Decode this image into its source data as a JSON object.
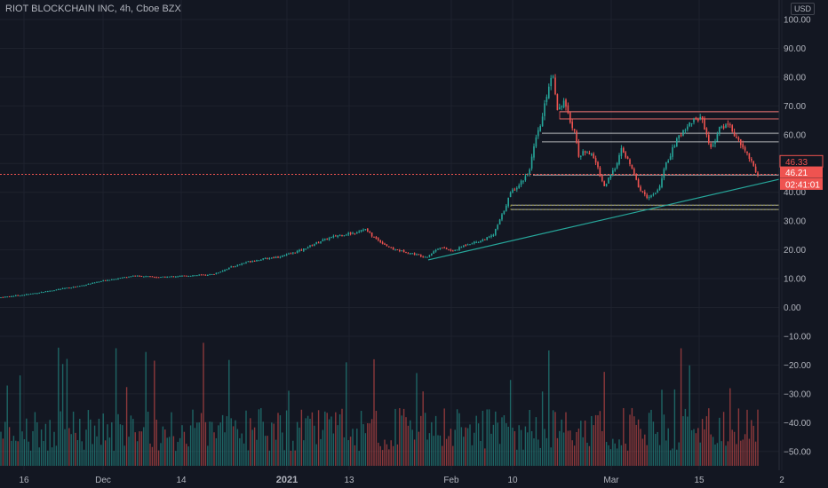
{
  "header": {
    "title": "RIOT BLOCKCHAIN INC, 4h, Cboe BZX",
    "currency": "USD"
  },
  "colors": {
    "background": "#131722",
    "grid": "#1e222d",
    "up": "#26a69a",
    "down": "#ef5350",
    "axis_text": "#b2b5be",
    "trendline": "#26a69a",
    "horizontal_lines": "#e8e8e8",
    "price_line": "#ef5350"
  },
  "chart_data": {
    "type": "candlestick",
    "title": "RIOT BLOCKCHAIN INC, 4h, Cboe BZX",
    "ylabel": "",
    "xlabel": "",
    "ylim": [
      -55,
      104
    ],
    "y_ticks": [
      100,
      90,
      80,
      70,
      60,
      50,
      40,
      30,
      20,
      10,
      0,
      -10,
      -20,
      -30,
      -40,
      -50
    ],
    "x_ticks": [
      "16",
      "Dec",
      "14",
      "2021",
      "13",
      "Feb",
      "10",
      "Mar",
      "15",
      "2"
    ],
    "close_path": [
      [
        0,
        3.5
      ],
      [
        30,
        4.5
      ],
      [
        60,
        6
      ],
      [
        90,
        7.5
      ],
      [
        120,
        9.5
      ],
      [
        150,
        11
      ],
      [
        180,
        10.5
      ],
      [
        210,
        11
      ],
      [
        240,
        11.5
      ],
      [
        260,
        14
      ],
      [
        280,
        16
      ],
      [
        300,
        17
      ],
      [
        320,
        18
      ],
      [
        340,
        20
      ],
      [
        360,
        23
      ],
      [
        380,
        25
      ],
      [
        400,
        26
      ],
      [
        410,
        27.5
      ],
      [
        420,
        24.5
      ],
      [
        440,
        20.5
      ],
      [
        460,
        19
      ],
      [
        480,
        17.5
      ],
      [
        495,
        21
      ],
      [
        510,
        19.5
      ],
      [
        525,
        22
      ],
      [
        540,
        23
      ],
      [
        555,
        25
      ],
      [
        565,
        32
      ],
      [
        575,
        40
      ],
      [
        585,
        43
      ],
      [
        595,
        47
      ],
      [
        603,
        58
      ],
      [
        610,
        65
      ],
      [
        616,
        75
      ],
      [
        622,
        82
      ],
      [
        628,
        68
      ],
      [
        634,
        72
      ],
      [
        640,
        66
      ],
      [
        646,
        62
      ],
      [
        652,
        52
      ],
      [
        660,
        55
      ],
      [
        670,
        51
      ],
      [
        680,
        42
      ],
      [
        690,
        47
      ],
      [
        700,
        55
      ],
      [
        710,
        49
      ],
      [
        720,
        41
      ],
      [
        730,
        38
      ],
      [
        740,
        40
      ],
      [
        750,
        50
      ],
      [
        760,
        57
      ],
      [
        770,
        62
      ],
      [
        780,
        65
      ],
      [
        790,
        66
      ],
      [
        800,
        55
      ],
      [
        810,
        62
      ],
      [
        820,
        64
      ],
      [
        830,
        58
      ],
      [
        840,
        54
      ],
      [
        848,
        49
      ],
      [
        853,
        46.21
      ]
    ],
    "volume_scale": {
      "base": -55,
      "top": -12
    },
    "horizontal_levels": [
      {
        "price": 68,
        "x_from": 630,
        "x_to": 877
      },
      {
        "price": 65.5,
        "x_from": 630,
        "x_to": 877
      },
      {
        "price": 60.5,
        "x_from": 610,
        "x_to": 877
      },
      {
        "price": 57.5,
        "x_from": 610,
        "x_to": 877
      },
      {
        "price": 46,
        "x_from": 600,
        "x_to": 877
      },
      {
        "price": 35.5,
        "x_from": 575,
        "x_to": 877
      },
      {
        "price": 34,
        "x_from": 575,
        "x_to": 877
      }
    ],
    "trendline": {
      "from": [
        482,
        16.5
      ],
      "to": [
        877,
        44.5
      ]
    },
    "price_line": 46.21,
    "labels": [
      {
        "text": "46.33",
        "price": 50.6,
        "color": "#ef5350",
        "style": "outline"
      },
      {
        "text": "46.21",
        "price": 46.8,
        "color": "#ef5350",
        "style": "fill"
      },
      {
        "text": "02:41:01",
        "price": 42.7,
        "color": "#ef5350",
        "style": "fill"
      }
    ]
  }
}
